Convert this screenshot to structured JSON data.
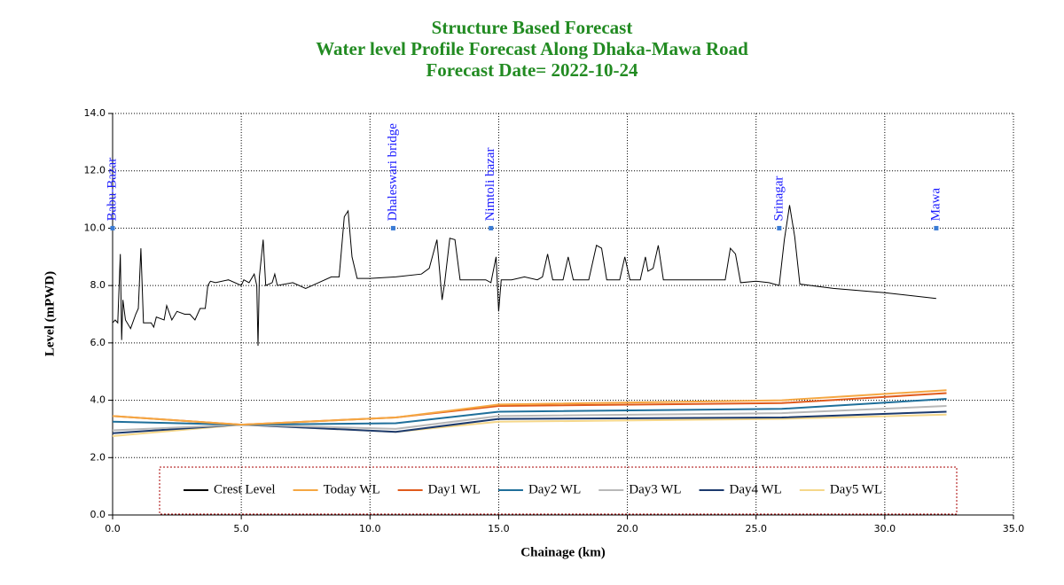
{
  "chart_data": {
    "type": "line",
    "title": [
      "Structure Based Forecast",
      "Water level Profile Forecast Along Dhaka-Mawa Road",
      "Forecast Date= 2022-10-24"
    ],
    "xlabel": "Chainage (km)",
    "ylabel": "Level (mPWD)",
    "xlim": [
      0,
      35
    ],
    "ylim": [
      0,
      14
    ],
    "xticks": [
      {
        "value": 0,
        "label": "0.0"
      },
      {
        "value": 5,
        "label": "5.0"
      },
      {
        "value": 10,
        "label": "10.0"
      },
      {
        "value": 15,
        "label": "15.0"
      },
      {
        "value": 20,
        "label": "20.0"
      },
      {
        "value": 25,
        "label": "25.0"
      },
      {
        "value": 30,
        "label": "30.0"
      },
      {
        "value": 35,
        "label": "35.0"
      }
    ],
    "yticks": [
      {
        "value": 0,
        "label": "0.0"
      },
      {
        "value": 2,
        "label": "2.0"
      },
      {
        "value": 4,
        "label": "4.0"
      },
      {
        "value": 6,
        "label": "6.0"
      },
      {
        "value": 8,
        "label": "8.0"
      },
      {
        "value": 10,
        "label": "10.0"
      },
      {
        "value": 12,
        "label": "12.0"
      },
      {
        "value": 14,
        "label": "14.0"
      }
    ],
    "grid": true,
    "legend": "bottom",
    "annotations": [
      {
        "text": "Babu-Bazar",
        "x": 0,
        "y": 10
      },
      {
        "text": "Dhaleswari bridge",
        "x": 10.9,
        "y": 10
      },
      {
        "text": "Nimtoli bazar",
        "x": 14.7,
        "y": 10
      },
      {
        "text": "Srinagar",
        "x": 25.9,
        "y": 10
      },
      {
        "text": "Mawa",
        "x": 32.0,
        "y": 10
      }
    ],
    "annotation_color": "#1a1aff",
    "series": [
      {
        "name": "Crest Level",
        "color": "#000000",
        "x": [
          0,
          0.1,
          0.2,
          0.3,
          0.35,
          0.4,
          0.5,
          0.7,
          0.9,
          1.0,
          1.1,
          1.2,
          1.5,
          1.6,
          1.7,
          2.0,
          2.1,
          2.3,
          2.5,
          2.8,
          3.0,
          3.2,
          3.4,
          3.6,
          3.7,
          3.8,
          4.0,
          4.5,
          5.0,
          5.1,
          5.3,
          5.5,
          5.6,
          5.65,
          5.7,
          5.85,
          5.95,
          6.2,
          6.3,
          6.4,
          7.0,
          7.5,
          8.0,
          8.5,
          8.8,
          9.0,
          9.15,
          9.3,
          9.5,
          10.0,
          11.0,
          12.0,
          12.3,
          12.6,
          12.8,
          12.9,
          13.1,
          13.3,
          13.5,
          14.0,
          14.5,
          14.7,
          14.9,
          15.0,
          15.1,
          15.5,
          16.0,
          16.5,
          16.7,
          16.9,
          17.1,
          17.5,
          17.7,
          17.9,
          18.5,
          18.8,
          19.0,
          19.2,
          19.7,
          19.9,
          20.1,
          20.5,
          20.7,
          20.8,
          21.0,
          21.2,
          21.4,
          22.0,
          23.0,
          23.8,
          24.0,
          24.2,
          24.4,
          25.0,
          25.5,
          25.9,
          26.1,
          26.3,
          26.5,
          26.7,
          28.0,
          30.0,
          32.0
        ],
        "values": [
          6.7,
          6.8,
          6.7,
          9.1,
          6.1,
          7.5,
          6.8,
          6.5,
          7.0,
          7.2,
          9.3,
          6.7,
          6.7,
          6.55,
          6.9,
          6.8,
          7.3,
          6.8,
          7.1,
          7.0,
          7.0,
          6.8,
          7.2,
          7.2,
          8.0,
          8.15,
          8.1,
          8.2,
          8.0,
          8.2,
          8.1,
          8.4,
          8.0,
          5.9,
          8.3,
          9.6,
          8.0,
          8.1,
          8.4,
          8.0,
          8.1,
          7.9,
          8.1,
          8.3,
          8.3,
          10.4,
          10.6,
          9.0,
          8.25,
          8.25,
          8.3,
          8.4,
          8.6,
          9.6,
          7.5,
          8.1,
          9.65,
          9.6,
          8.2,
          8.2,
          8.2,
          8.1,
          9.0,
          7.1,
          8.2,
          8.2,
          8.3,
          8.2,
          8.3,
          9.1,
          8.2,
          8.2,
          9.0,
          8.2,
          8.2,
          9.4,
          9.3,
          8.2,
          8.2,
          9.0,
          8.2,
          8.2,
          9.0,
          8.5,
          8.6,
          9.4,
          8.2,
          8.2,
          8.2,
          8.2,
          9.3,
          9.1,
          8.1,
          8.15,
          8.1,
          8.0,
          9.6,
          10.8,
          9.7,
          8.05,
          7.9,
          7.75,
          7.55
        ]
      },
      {
        "name": "Today WL",
        "color": "#f5a742",
        "x": [
          0,
          5,
          11,
          15,
          26,
          32.4
        ],
        "values": [
          3.45,
          3.15,
          3.4,
          3.85,
          4.0,
          4.35
        ]
      },
      {
        "name": "Day1 WL",
        "color": "#e05a1c",
        "x": [
          0,
          5,
          11,
          15,
          26,
          32.4
        ],
        "values": [
          3.45,
          3.15,
          3.4,
          3.8,
          3.9,
          4.25
        ]
      },
      {
        "name": "Day2 WL",
        "color": "#1f6f9a",
        "x": [
          0,
          5,
          11,
          15,
          26,
          32.4
        ],
        "values": [
          3.25,
          3.15,
          3.2,
          3.6,
          3.7,
          4.05
        ]
      },
      {
        "name": "Day3 WL",
        "color": "#b8b8b8",
        "x": [
          0,
          5,
          11,
          15,
          26,
          32.4
        ],
        "values": [
          2.95,
          3.15,
          3.0,
          3.45,
          3.55,
          3.8
        ]
      },
      {
        "name": "Day4 WL",
        "color": "#1c3a6e",
        "x": [
          0,
          5,
          11,
          15,
          26,
          32.4
        ],
        "values": [
          2.85,
          3.15,
          2.9,
          3.35,
          3.4,
          3.6
        ]
      },
      {
        "name": "Day5 WL",
        "color": "#f5d78a",
        "x": [
          0,
          5,
          11,
          15,
          26,
          32.4
        ],
        "values": [
          2.75,
          3.15,
          2.9,
          3.25,
          3.35,
          3.5
        ]
      }
    ]
  }
}
